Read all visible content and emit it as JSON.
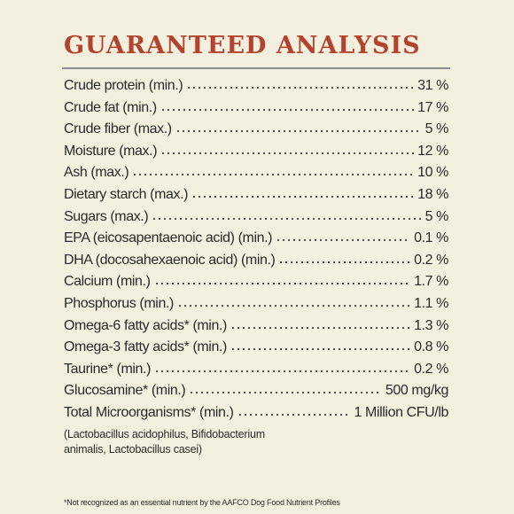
{
  "title": "GUARANTEED ANALYSIS",
  "rows": [
    {
      "label": "Crude protein (min.)",
      "value": "31 %"
    },
    {
      "label": "Crude fat (min.)",
      "value": "17 %"
    },
    {
      "label": "Crude fiber (max.)",
      "value": "5 %"
    },
    {
      "label": "Moisture (max.)",
      "value": "12 %"
    },
    {
      "label": "Ash (max.)",
      "value": "10 %"
    },
    {
      "label": "Dietary starch (max.)",
      "value": "18 %"
    },
    {
      "label": "Sugars (max.)",
      "value": "5 %"
    },
    {
      "label": "EPA (eicosapentaenoic acid) (min.)",
      "value": "0.1 %"
    },
    {
      "label": "DHA (docosahexaenoic acid) (min.)",
      "value": "0.2 %"
    },
    {
      "label": "Calcium (min.)",
      "value": "1.7 %"
    },
    {
      "label": "Phosphorus (min.)",
      "value": "1.1 %"
    },
    {
      "label": "Omega-6 fatty acids* (min.)",
      "value": "1.3 %"
    },
    {
      "label": "Omega-3 fatty acids* (min.)",
      "value": "0.8 %"
    },
    {
      "label": "Taurine* (min.)",
      "value": "0.2 %"
    },
    {
      "label": "Glucosamine* (min.)",
      "value": "500 mg/kg"
    },
    {
      "label": "Total Microorganisms* (min.)",
      "value": "1 Million CFU/lb"
    }
  ],
  "note": "(Lactobacillus acidophilus, Bifidobacterium animalis, Lactobacillus casei)",
  "footnote": "*Not recognized as an essential nutrient by the AAFCO Dog Food Nutrient Profiles"
}
